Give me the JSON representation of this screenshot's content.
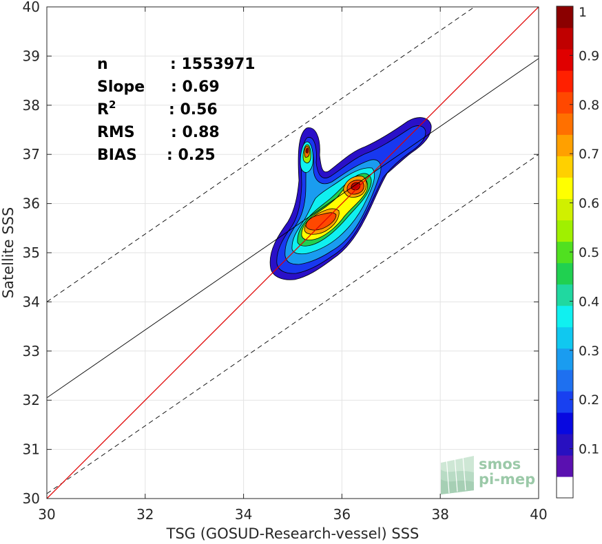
{
  "chart_data": {
    "type": "heatmap",
    "title": "",
    "xlabel": "TSG (GOSUD-Research-vessel) SSS",
    "ylabel": "Satellite SSS",
    "xlim": [
      30,
      40
    ],
    "ylim": [
      30,
      40
    ],
    "xticks": [
      "30",
      "32",
      "34",
      "36",
      "38",
      "40"
    ],
    "yticks": [
      "30",
      "31",
      "32",
      "33",
      "34",
      "35",
      "36",
      "37",
      "38",
      "39",
      "40"
    ],
    "grid": true,
    "stats": [
      {
        "label": "n",
        "sep": ":",
        "value": "1553971"
      },
      {
        "label": "Slope",
        "sep": ":",
        "value": "0.69"
      },
      {
        "label": "R",
        "sup": "2",
        "sep": ":",
        "value": "0.56"
      },
      {
        "label": "RMS",
        "sep": ":",
        "value": "0.88"
      },
      {
        "label": "BIAS",
        "sep": ":",
        "value": "0.25"
      }
    ],
    "lines": {
      "one_to_one": {
        "color": "#e00000",
        "x": [
          30,
          40
        ],
        "y": [
          30,
          40
        ]
      },
      "regression": {
        "color": "#000000",
        "x": [
          30,
          40
        ],
        "y": [
          32.05,
          38.95
        ]
      },
      "upper_bound": {
        "color": "#000000",
        "style": "dashed",
        "x": [
          30,
          40
        ],
        "y": [
          34.0,
          40.9
        ]
      },
      "lower_bound": {
        "color": "#000000",
        "style": "dashed",
        "x": [
          30,
          40
        ],
        "y": [
          30.1,
          37.0
        ]
      }
    },
    "density_peaks": [
      {
        "x": 35.3,
        "y": 37.05,
        "level": 0.8
      },
      {
        "x": 35.5,
        "y": 35.55,
        "level": 0.85
      },
      {
        "x": 36.3,
        "y": 36.3,
        "level": 0.92
      }
    ],
    "colorbar": {
      "range": [
        0,
        1
      ],
      "ticks": [
        "0.1",
        "0.2",
        "0.3",
        "0.4",
        "0.5",
        "0.6",
        "0.7",
        "0.8",
        "0.9",
        "1"
      ],
      "colors": [
        "#ffffff",
        "#5a10b0",
        "#2810c0",
        "#0808e0",
        "#1840f0",
        "#1e70f0",
        "#1a9cf0",
        "#10c8f0",
        "#10f0f0",
        "#20d8a0",
        "#20d050",
        "#50e020",
        "#a0f000",
        "#d0f000",
        "#ffff00",
        "#ffd000",
        "#ffa000",
        "#ff7000",
        "#ff4800",
        "#ff2000",
        "#e00000",
        "#c00000",
        "#8b0000"
      ]
    }
  },
  "watermark": {
    "line1": "smos",
    "line2": "pi-mep"
  }
}
